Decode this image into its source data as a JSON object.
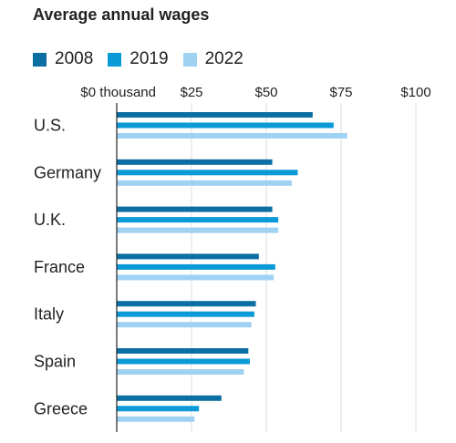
{
  "chart_data": {
    "type": "bar",
    "orientation": "horizontal",
    "title": "Average annual wages",
    "categories": [
      "U.S.",
      "Germany",
      "U.K.",
      "France",
      "Italy",
      "Spain",
      "Greece"
    ],
    "series": [
      {
        "name": "2008",
        "color": "#0b6fa3",
        "values": [
          65.5,
          52,
          52,
          47.5,
          46.5,
          44,
          35
        ]
      },
      {
        "name": "2019",
        "color": "#0a9ad8",
        "values": [
          72.5,
          60.5,
          54,
          53,
          46,
          44.5,
          27.5
        ]
      },
      {
        "name": "2022",
        "color": "#9fd2f2",
        "values": [
          77,
          58.5,
          54,
          52.5,
          45,
          42.5,
          26
        ]
      }
    ],
    "x_ticks": [
      {
        "value": 0,
        "label": "$0 thousand"
      },
      {
        "value": 25,
        "label": "$25"
      },
      {
        "value": 50,
        "label": "$50"
      },
      {
        "value": 75,
        "label": "$75"
      },
      {
        "value": 100,
        "label": "$100"
      }
    ],
    "xlim": [
      0,
      100
    ],
    "grid": true,
    "legend_position": "top-left"
  }
}
